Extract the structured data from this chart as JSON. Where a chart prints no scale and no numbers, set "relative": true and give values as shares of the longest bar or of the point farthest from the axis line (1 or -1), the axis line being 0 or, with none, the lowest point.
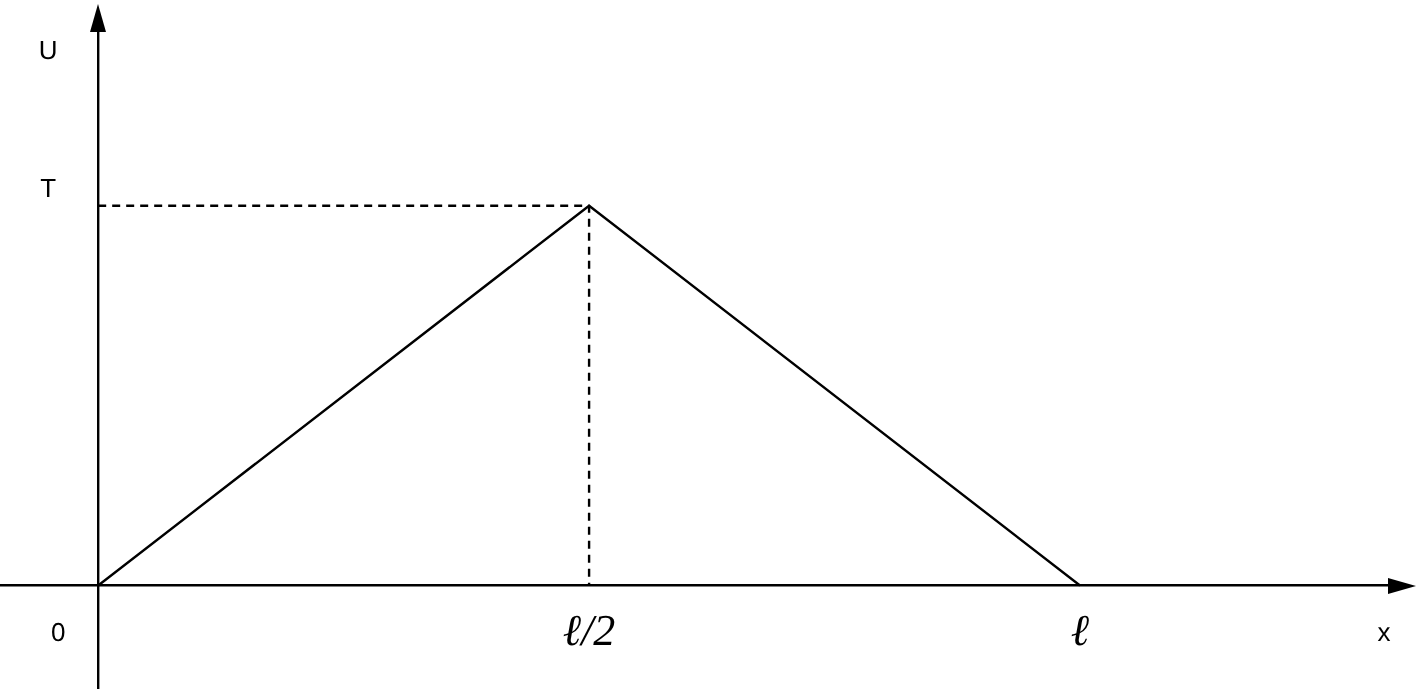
{
  "chart_data": {
    "type": "line",
    "xlabel": "x",
    "relative": true,
    "categories": [
      "0",
      "ℓ/2",
      "ℓ"
    ],
    "annotations": [
      "U",
      "T"
    ],
    "legend": false,
    "marker": "none",
    "series": [
      {
        "color": "#000000",
        "values": [
          0,
          1,
          0
        ],
        "line_style": "solid"
      },
      {
        "color": "#000000",
        "x": [
          "0",
          "ℓ/2",
          "ℓ/2"
        ],
        "values": [
          1,
          1,
          0
        ],
        "line_style": "dashed"
      }
    ]
  }
}
